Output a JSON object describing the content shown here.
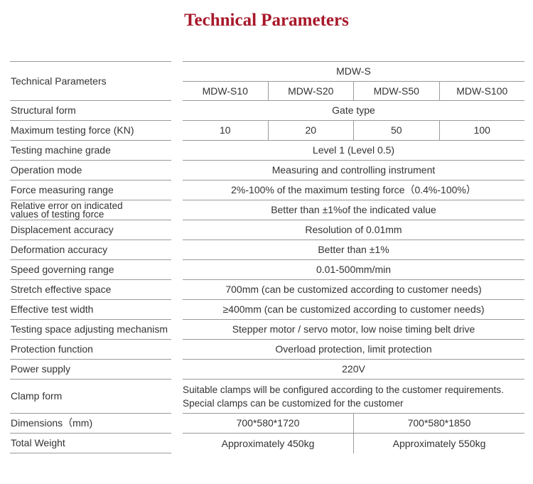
{
  "title": "Technical Parameters",
  "colors": {
    "title": "#a8182a",
    "rule": "#9a9a9a",
    "text": "#333333"
  },
  "header": {
    "label": "Technical Parameters",
    "group": "MDW-S",
    "models": [
      "MDW-S10",
      "MDW-S20",
      "MDW-S50",
      "MDW-S100"
    ]
  },
  "rows": [
    {
      "label": "Structural form",
      "values": [
        "Gate type"
      ]
    },
    {
      "label": "Maximum testing force (KN)",
      "values": [
        "10",
        "20",
        "50",
        "100"
      ]
    },
    {
      "label": "Testing machine grade",
      "values": [
        "Level 1 (Level 0.5)"
      ]
    },
    {
      "label": "Operation mode",
      "values": [
        "Measuring and controlling instrument"
      ]
    },
    {
      "label": "Force measuring range",
      "values": [
        "2%-100% of the maximum testing force（0.4%-100%）"
      ]
    },
    {
      "label": "Relative error on indicated values of testing force",
      "values": [
        "Better than ±1%of the indicated value"
      ]
    },
    {
      "label": "Displacement accuracy",
      "values": [
        "Resolution of 0.01mm"
      ]
    },
    {
      "label": "Deformation accuracy",
      "values": [
        "Better than ±1%"
      ]
    },
    {
      "label": "Speed governing range",
      "values": [
        "0.01-500mm/min"
      ]
    },
    {
      "label": "Stretch effective space",
      "values": [
        "700mm (can be customized according to customer needs)"
      ]
    },
    {
      "label": "Effective test width",
      "values": [
        "≥400mm (can be customized according to customer needs)"
      ]
    },
    {
      "label": "Testing space adjusting mechanism",
      "values": [
        "Stepper motor / servo motor, low noise timing belt drive"
      ]
    },
    {
      "label": "Protection function",
      "values": [
        "Overload protection, limit protection"
      ]
    },
    {
      "label": "Power supply",
      "values": [
        "220V"
      ]
    },
    {
      "label": "Clamp form",
      "values": [
        "Suitable clamps will be configured according to the customer requirements. Special clamps can be customized for the customer"
      ]
    },
    {
      "label": "Dimensions（mm)",
      "values": [
        "700*580*1720",
        "700*580*1850"
      ]
    },
    {
      "label": "Total Weight",
      "values": [
        "Approximately 450kg",
        "Approximately 550kg"
      ]
    }
  ]
}
